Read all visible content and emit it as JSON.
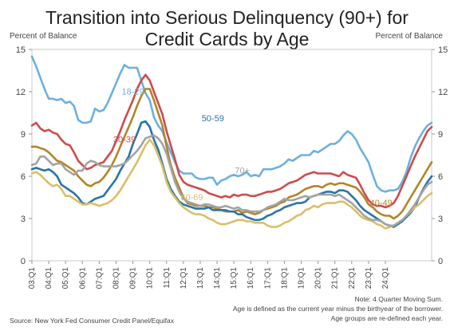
{
  "header": {
    "title_line1": "Transition into Serious Delinquency (90+) for",
    "title_line2": "Credit Cards by Age",
    "left_axis_unit": "Percent of Balance",
    "right_axis_unit": "Percent of Balance"
  },
  "footer": {
    "note1": "Note: 4 Quarter Moving Sum.",
    "note2": "Age is defined as the current year minus the birthyear of the borrower.",
    "note3": "Age groups are re-defined each year.",
    "source": "Source: New York Fed Consumer Credit Panel/Equifax"
  },
  "chart_data": {
    "type": "line",
    "title": "Transition into Serious Delinquency (90+) for Credit Cards by Age",
    "ylabel": "Percent of Balance",
    "ylim": [
      0,
      15
    ],
    "yticks": [
      0,
      3,
      6,
      9,
      12,
      15
    ],
    "xticks": [
      "03:Q1",
      "04:Q1",
      "05:Q1",
      "06:Q1",
      "07:Q1",
      "08:Q1",
      "09:Q1",
      "10:Q1",
      "11:Q1",
      "12:Q1",
      "13:Q1",
      "14:Q1",
      "15:Q1",
      "16:Q1",
      "17:Q1",
      "18:Q1",
      "19:Q1",
      "20:Q1",
      "21:Q1",
      "22:Q1",
      "23:Q1",
      "24:Q1"
    ],
    "x_start": "03:Q1",
    "x_end": "24:Q1",
    "grid": false,
    "series": [
      {
        "name": "18-29",
        "color": "#6cb0e0",
        "values": [
          14.5,
          13.8,
          13.0,
          12.2,
          11.5,
          11.5,
          11.4,
          11.5,
          11.2,
          11.3,
          11.0,
          10.0,
          9.8,
          9.8,
          9.9,
          10.8,
          10.6,
          10.7,
          11.2,
          11.9,
          12.6,
          13.3,
          13.9,
          13.7,
          13.7,
          13.7,
          12.8,
          11.9,
          11.4,
          10.2,
          9.6,
          9.2,
          8.4,
          7.7,
          7.0,
          6.4,
          6.2,
          6.2,
          6.2,
          5.9,
          5.8,
          5.8,
          5.9,
          5.9,
          5.4,
          5.7,
          5.8,
          6.0,
          6.1,
          6.0,
          6.1,
          6.3,
          6.0,
          6.1,
          6.0,
          6.5,
          6.5,
          6.5,
          6.6,
          6.7,
          6.9,
          7.2,
          7.1,
          7.3,
          7.5,
          7.5,
          7.5,
          7.8,
          7.7,
          7.9,
          8.1,
          8.3,
          8.3,
          8.5,
          8.9,
          9.2,
          9.0,
          8.6,
          8.0,
          7.5,
          7.0,
          6.1,
          5.3,
          5.0,
          4.9,
          5.0,
          5.0,
          5.1,
          5.6,
          6.3,
          7.3,
          8.1,
          8.7,
          9.2,
          9.6,
          9.8
        ]
      },
      {
        "name": "30-39",
        "color": "#cc4c4a",
        "values": [
          9.6,
          9.8,
          9.4,
          9.2,
          9.3,
          9.1,
          9.0,
          8.6,
          8.3,
          8.2,
          7.7,
          7.1,
          6.8,
          6.5,
          6.6,
          6.8,
          6.9,
          7.0,
          7.4,
          7.8,
          8.5,
          9.2,
          10.0,
          10.7,
          11.4,
          12.2,
          12.8,
          13.2,
          12.8,
          12.0,
          11.2,
          10.4,
          9.2,
          8.2,
          7.2,
          6.1,
          5.6,
          5.4,
          5.3,
          5.2,
          5.1,
          5.0,
          4.8,
          4.7,
          4.6,
          4.5,
          4.6,
          4.5,
          4.7,
          4.6,
          4.7,
          4.7,
          4.6,
          4.6,
          4.7,
          4.8,
          4.9,
          4.9,
          5.0,
          5.1,
          5.3,
          5.5,
          5.6,
          5.7,
          5.9,
          6.1,
          6.2,
          6.3,
          6.2,
          6.2,
          6.2,
          6.2,
          6.1,
          6.0,
          6.3,
          6.1,
          6.0,
          5.9,
          5.4,
          4.8,
          4.3,
          4.0,
          3.9,
          3.9,
          3.8,
          3.9,
          4.1,
          4.6,
          5.3,
          6.0,
          6.7,
          7.4,
          8.0,
          8.6,
          9.2,
          9.5
        ]
      },
      {
        "name": "40-49",
        "color": "#b38428",
        "values": [
          8.1,
          8.1,
          8.0,
          7.9,
          7.7,
          7.4,
          7.1,
          7.0,
          6.8,
          6.6,
          6.4,
          6.0,
          5.7,
          5.4,
          5.3,
          5.5,
          5.6,
          5.9,
          6.3,
          6.8,
          7.4,
          8.1,
          8.8,
          9.5,
          10.2,
          11.0,
          11.7,
          12.2,
          12.2,
          11.4,
          10.5,
          9.6,
          8.1,
          6.8,
          5.9,
          5.2,
          4.5,
          4.1,
          4.0,
          3.9,
          3.9,
          3.9,
          3.8,
          3.8,
          3.7,
          3.6,
          3.5,
          3.5,
          3.5,
          3.6,
          3.4,
          3.5,
          3.4,
          3.3,
          3.4,
          3.6,
          3.7,
          3.8,
          3.9,
          4.1,
          4.2,
          4.5,
          4.6,
          4.7,
          4.9,
          5.1,
          5.2,
          5.3,
          5.3,
          5.2,
          5.4,
          5.5,
          5.4,
          5.5,
          5.5,
          5.4,
          5.3,
          5.2,
          4.9,
          4.5,
          4.0,
          3.8,
          3.5,
          3.3,
          3.2,
          3.2,
          3.0,
          3.2,
          3.5,
          4.0,
          4.5,
          5.0,
          5.5,
          6.0,
          6.5,
          7.0
        ]
      },
      {
        "name": "50-59",
        "color": "#2874a8",
        "values": [
          6.5,
          6.6,
          6.5,
          6.4,
          6.5,
          6.3,
          6.0,
          5.4,
          5.2,
          5.0,
          4.8,
          4.5,
          4.1,
          4.0,
          4.2,
          4.4,
          4.5,
          4.6,
          5.0,
          5.4,
          5.8,
          6.4,
          6.9,
          7.4,
          8.3,
          9.0,
          9.8,
          9.9,
          9.5,
          8.6,
          7.9,
          6.9,
          5.8,
          5.1,
          4.6,
          4.2,
          4.0,
          3.9,
          3.8,
          3.7,
          3.7,
          3.7,
          3.8,
          3.6,
          3.6,
          3.6,
          3.6,
          3.5,
          3.5,
          3.3,
          3.3,
          3.1,
          3.0,
          2.9,
          2.9,
          3.0,
          3.2,
          3.3,
          3.5,
          3.6,
          3.8,
          3.9,
          4.0,
          4.1,
          4.1,
          4.2,
          4.5,
          4.6,
          4.7,
          4.8,
          4.9,
          4.9,
          4.8,
          5.0,
          5.0,
          4.9,
          4.6,
          4.3,
          3.9,
          3.6,
          3.4,
          3.2,
          3.0,
          2.8,
          2.6,
          2.5,
          2.4,
          2.6,
          2.8,
          3.1,
          3.4,
          3.8,
          4.5,
          5.1,
          5.6,
          6.0
        ]
      },
      {
        "name": "60-69",
        "color": "#dbbe68",
        "values": [
          6.2,
          6.3,
          6.1,
          5.8,
          5.5,
          5.3,
          5.4,
          5.1,
          4.6,
          4.6,
          4.4,
          4.2,
          4.0,
          4.0,
          4.1,
          4.0,
          3.9,
          4.0,
          4.1,
          4.3,
          4.6,
          5.0,
          5.5,
          6.0,
          6.5,
          7.0,
          7.6,
          8.2,
          8.6,
          8.2,
          7.5,
          6.7,
          5.6,
          4.9,
          4.5,
          4.1,
          3.8,
          3.6,
          3.4,
          3.3,
          3.3,
          3.2,
          3.0,
          2.9,
          2.7,
          2.6,
          2.6,
          2.7,
          2.8,
          2.9,
          2.9,
          2.8,
          2.8,
          2.7,
          2.7,
          2.7,
          2.5,
          2.4,
          2.4,
          2.5,
          2.7,
          2.8,
          3.0,
          3.2,
          3.3,
          3.6,
          3.7,
          3.9,
          3.8,
          4.0,
          4.1,
          4.1,
          4.1,
          4.2,
          4.2,
          4.0,
          3.8,
          3.5,
          3.2,
          3.0,
          2.9,
          2.8,
          2.6,
          2.5,
          2.3,
          2.4,
          2.5,
          2.7,
          2.9,
          3.2,
          3.5,
          3.8,
          4.0,
          4.3,
          4.6,
          4.8
        ]
      },
      {
        "name": "70+",
        "color": "#a3a3a3",
        "values": [
          6.8,
          6.9,
          7.4,
          7.4,
          7.1,
          6.8,
          6.9,
          6.9,
          6.5,
          6.3,
          6.1,
          6.4,
          6.4,
          6.9,
          7.1,
          7.0,
          6.8,
          6.7,
          6.7,
          6.7,
          6.7,
          6.8,
          6.9,
          7.2,
          7.5,
          7.8,
          8.2,
          8.7,
          8.8,
          8.9,
          8.7,
          8.3,
          7.6,
          6.6,
          5.6,
          4.9,
          4.4,
          4.2,
          4.1,
          4.0,
          3.9,
          4.0,
          4.0,
          3.9,
          3.8,
          3.8,
          3.9,
          3.8,
          3.7,
          3.8,
          3.6,
          3.6,
          3.5,
          3.5,
          3.5,
          3.6,
          3.8,
          3.9,
          4.0,
          4.2,
          4.4,
          4.3,
          4.3,
          4.4,
          4.5,
          4.6,
          4.5,
          4.6,
          4.7,
          4.7,
          4.7,
          4.7,
          4.6,
          4.7,
          4.5,
          4.3,
          4.1,
          3.8,
          3.5,
          3.2,
          3.0,
          2.9,
          2.9,
          2.8,
          2.6,
          2.5,
          2.5,
          2.7,
          2.9,
          3.2,
          3.6,
          4.0,
          4.5,
          5.0,
          5.4,
          5.6
        ]
      }
    ],
    "series_labels": [
      {
        "series": "18-29",
        "x_index": 24,
        "y": 11.8
      },
      {
        "series": "30-39",
        "x_index": 22,
        "y": 8.4
      },
      {
        "series": "50-59",
        "x_index": 43,
        "y": 9.9
      },
      {
        "series": "70+",
        "x_index": 50,
        "y": 6.2
      },
      {
        "series": "60-69",
        "x_index": 38,
        "y": 4.3
      },
      {
        "series": "40-49",
        "x_index": 83,
        "y": 3.9
      }
    ]
  }
}
